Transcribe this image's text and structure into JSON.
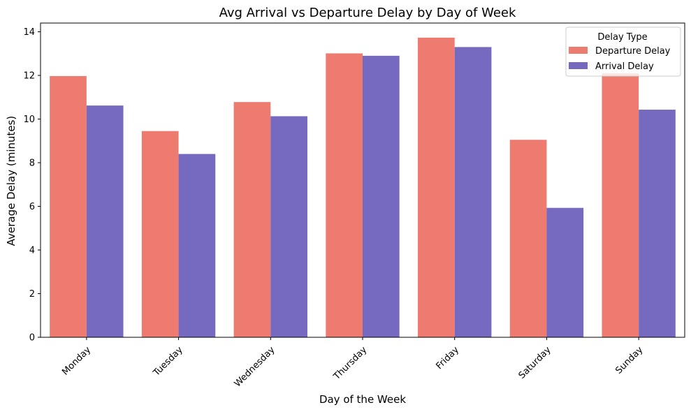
{
  "chart_data": {
    "type": "bar",
    "title": "Avg Arrival vs Departure Delay by Day of Week",
    "xlabel": "Day of the Week",
    "ylabel": "Average Delay (minutes)",
    "categories": [
      "Monday",
      "Tuesday",
      "Wednesday",
      "Thursday",
      "Friday",
      "Saturday",
      "Sunday"
    ],
    "series": [
      {
        "name": "Departure Delay",
        "color": "#ee7b70",
        "values": [
          11.97,
          9.45,
          10.78,
          13.01,
          13.73,
          9.05,
          12.1
        ]
      },
      {
        "name": "Arrival Delay",
        "color": "#756ac0",
        "values": [
          10.62,
          8.4,
          10.13,
          12.9,
          13.3,
          5.93,
          10.43
        ]
      }
    ],
    "ylim": [
      0,
      14.4
    ],
    "yticks": [
      0,
      2,
      4,
      6,
      8,
      10,
      12,
      14
    ],
    "legend": {
      "title": "Delay Type",
      "position": "top-right"
    },
    "grid": false
  }
}
